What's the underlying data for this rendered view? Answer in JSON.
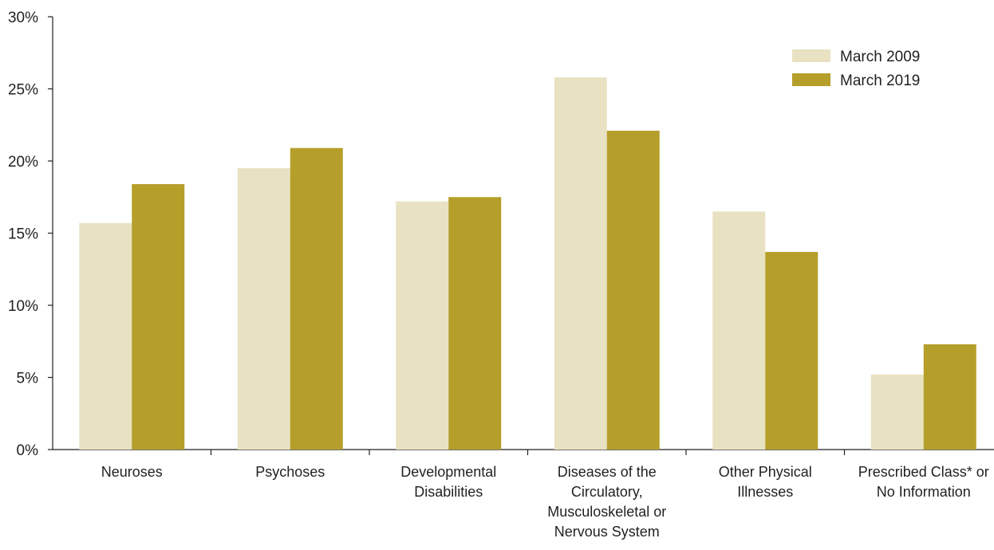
{
  "chart_data": {
    "type": "bar",
    "categories": [
      [
        "Neuroses"
      ],
      [
        "Psychoses"
      ],
      [
        "Developmental",
        "Disabilities"
      ],
      [
        "Diseases of the",
        "Circulatory,",
        "Musculoskeletal or",
        "Nervous System"
      ],
      [
        "Other Physical",
        "Illnesses"
      ],
      [
        "Prescribed Class* or",
        "No Information"
      ]
    ],
    "series": [
      {
        "name": "March 2009",
        "color": "#e8e2c3",
        "values": [
          15.7,
          19.5,
          17.2,
          25.8,
          16.5,
          5.2
        ]
      },
      {
        "name": "March 2019",
        "color": "#b59f2a",
        "values": [
          18.4,
          20.9,
          17.5,
          22.1,
          13.7,
          7.3
        ]
      }
    ],
    "ylim": [
      0,
      30
    ],
    "yticks": [
      0,
      5,
      10,
      15,
      20,
      25,
      30
    ],
    "ytick_suffix": "%",
    "grid": false,
    "legend_position": "top-right"
  }
}
